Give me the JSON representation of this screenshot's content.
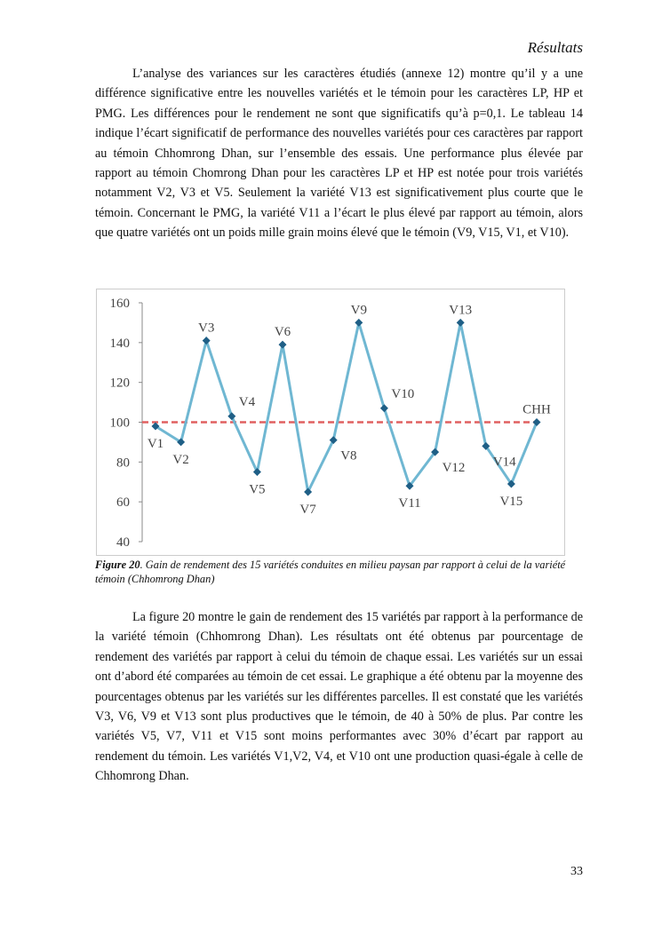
{
  "header": {
    "title": "Résultats"
  },
  "paragraphs": [
    "L’analyse des variances sur les caractères étudiés (annexe 12) montre qu’il y a une différence significative entre les nouvelles variétés et le témoin pour les caractères LP, HP et PMG. Les différences pour le rendement ne sont que significatifs qu’à p=0,1. Le tableau 14 indique l’écart significatif de performance des nouvelles variétés pour ces caractères par rapport au témoin Chhomrong Dhan, sur l’ensemble des essais. Une performance plus élevée par rapport au témoin Chomrong Dhan pour les caractères LP et HP est notée pour trois variétés notamment V2, V3 et V5. Seulement la variété V13 est significativement plus courte que le témoin. Concernant le PMG, la variété V11 a l’écart le plus élevé par rapport au témoin, alors que quatre variétés ont un poids mille grain moins élevé que le témoin (V9, V15, V1, et V10).",
    "La figure 20 montre le gain de rendement des 15 variétés par rapport à la performance de la variété témoin (Chhomrong Dhan). Les résultats ont été obtenus par pourcentage de rendement des variétés par rapport à celui du témoin de chaque essai. Les variétés sur un essai ont d’abord été comparées au témoin de cet essai. Le graphique a été obtenu par la moyenne des pourcentages obtenus par les variétés sur les différentes parcelles. Il est constaté que les variétés V3, V6, V9 et V13 sont plus productives que le témoin, de 40 à 50% de plus. Par contre les variétés V5, V7, V11 et V15 sont moins performantes avec 30% d’écart par rapport au rendement du témoin. Les variétés V1,V2, V4, et V10 ont une production quasi-égale à celle de Chhomrong Dhan."
  ],
  "caption": {
    "label": "Figure 20",
    "text": ". Gain de rendement des 15 variétés conduites en milieu paysan par rapport à celui de la variété témoin (Chhomrong Dhan)"
  },
  "chart_data": {
    "type": "line",
    "categories": [
      "V1",
      "V2",
      "V3",
      "V4",
      "V5",
      "V6",
      "V7",
      "V8",
      "V9",
      "V10",
      "V11",
      "V12",
      "V13",
      "V14",
      "V15",
      "CHH"
    ],
    "values": [
      98,
      90,
      141,
      103,
      75,
      139,
      65,
      91,
      150,
      107,
      68,
      85,
      150,
      88,
      69,
      100
    ],
    "color": "#6fb7d2",
    "marker_color": "#1f5f86",
    "reference_line": 100,
    "reference_color": "#e06060",
    "ylim": [
      40,
      160
    ],
    "yticks": [
      40,
      60,
      80,
      100,
      120,
      140,
      160
    ]
  },
  "page_number": "33"
}
